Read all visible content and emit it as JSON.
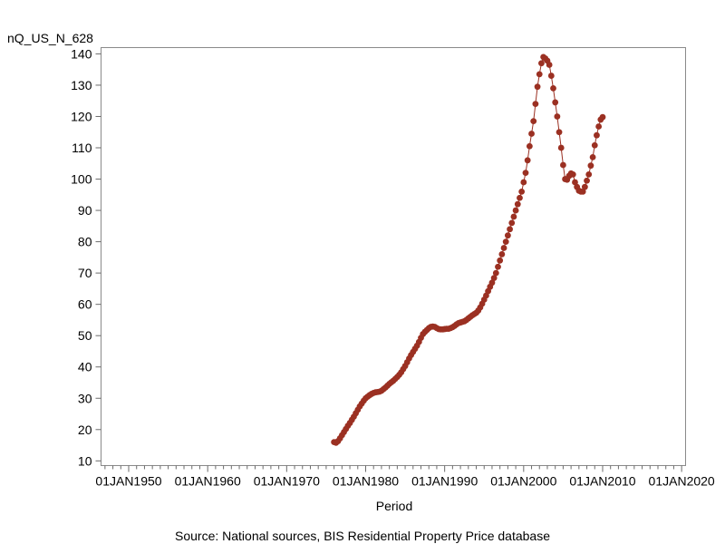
{
  "chart_data": {
    "type": "line",
    "ylabel": "nQ_US_N_628",
    "xlabel": "Period",
    "footnote": "Source: National sources, BIS Residential Property Price database",
    "x_ticks": [
      "01JAN1950",
      "01JAN1960",
      "01JAN1970",
      "01JAN1980",
      "01JAN1990",
      "01JAN2000",
      "01JAN2010",
      "01JAN2020"
    ],
    "y_ticks": [
      10,
      20,
      30,
      40,
      50,
      60,
      70,
      80,
      90,
      100,
      110,
      120,
      130,
      140
    ],
    "xlim": [
      1946.5,
      2020.5
    ],
    "ylim": [
      8.5,
      142
    ],
    "grid": false,
    "colors": {
      "series": "#9b3022"
    },
    "series": [
      {
        "points": [
          [
            1976.0,
            16.0
          ],
          [
            1976.25,
            15.8
          ],
          [
            1976.5,
            16.3
          ],
          [
            1976.75,
            17.2
          ],
          [
            1977.0,
            18.2
          ],
          [
            1977.25,
            19.2
          ],
          [
            1977.5,
            20.2
          ],
          [
            1977.75,
            21.2
          ],
          [
            1978.0,
            22.1
          ],
          [
            1978.25,
            23.1
          ],
          [
            1978.5,
            24.1
          ],
          [
            1978.75,
            25.2
          ],
          [
            1979.0,
            26.3
          ],
          [
            1979.25,
            27.4
          ],
          [
            1979.5,
            28.3
          ],
          [
            1979.75,
            29.2
          ],
          [
            1980.0,
            30.0
          ],
          [
            1980.25,
            30.5
          ],
          [
            1980.5,
            31.0
          ],
          [
            1980.75,
            31.4
          ],
          [
            1981.0,
            31.7
          ],
          [
            1981.25,
            31.9
          ],
          [
            1981.5,
            32.0
          ],
          [
            1981.75,
            32.1
          ],
          [
            1982.0,
            32.4
          ],
          [
            1982.25,
            32.9
          ],
          [
            1982.5,
            33.4
          ],
          [
            1982.75,
            34.0
          ],
          [
            1983.0,
            34.6
          ],
          [
            1983.25,
            35.1
          ],
          [
            1983.5,
            35.6
          ],
          [
            1983.75,
            36.2
          ],
          [
            1984.0,
            36.8
          ],
          [
            1984.25,
            37.5
          ],
          [
            1984.5,
            38.3
          ],
          [
            1984.75,
            39.3
          ],
          [
            1985.0,
            40.3
          ],
          [
            1985.25,
            41.5
          ],
          [
            1985.5,
            42.7
          ],
          [
            1985.75,
            43.8
          ],
          [
            1986.0,
            44.8
          ],
          [
            1986.25,
            45.8
          ],
          [
            1986.5,
            46.8
          ],
          [
            1986.75,
            48.0
          ],
          [
            1987.0,
            49.3
          ],
          [
            1987.25,
            50.5
          ],
          [
            1987.5,
            51.2
          ],
          [
            1987.75,
            51.8
          ],
          [
            1988.0,
            52.4
          ],
          [
            1988.25,
            52.8
          ],
          [
            1988.5,
            52.9
          ],
          [
            1988.75,
            52.8
          ],
          [
            1989.0,
            52.4
          ],
          [
            1989.25,
            52.1
          ],
          [
            1989.5,
            52.0
          ],
          [
            1989.75,
            52.0
          ],
          [
            1990.0,
            52.1
          ],
          [
            1990.25,
            52.2
          ],
          [
            1990.5,
            52.2
          ],
          [
            1990.75,
            52.4
          ],
          [
            1991.0,
            52.7
          ],
          [
            1991.25,
            53.1
          ],
          [
            1991.5,
            53.6
          ],
          [
            1991.75,
            54.0
          ],
          [
            1992.0,
            54.2
          ],
          [
            1992.25,
            54.4
          ],
          [
            1992.5,
            54.6
          ],
          [
            1992.75,
            55.0
          ],
          [
            1993.0,
            55.5
          ],
          [
            1993.25,
            56.0
          ],
          [
            1993.5,
            56.5
          ],
          [
            1993.75,
            56.9
          ],
          [
            1994.0,
            57.3
          ],
          [
            1994.25,
            58.0
          ],
          [
            1994.5,
            59.0
          ],
          [
            1994.75,
            60.2
          ],
          [
            1995.0,
            61.5
          ],
          [
            1995.25,
            62.8
          ],
          [
            1995.5,
            64.2
          ],
          [
            1995.75,
            65.6
          ],
          [
            1996.0,
            66.9
          ],
          [
            1996.25,
            68.4
          ],
          [
            1996.5,
            70.0
          ],
          [
            1996.75,
            72.0
          ],
          [
            1997.0,
            74.0
          ],
          [
            1997.25,
            76.0
          ],
          [
            1997.5,
            78.0
          ],
          [
            1997.75,
            80.0
          ],
          [
            1998.0,
            82.0
          ],
          [
            1998.25,
            84.0
          ],
          [
            1998.5,
            86.0
          ],
          [
            1998.75,
            88.0
          ],
          [
            1999.0,
            90.0
          ],
          [
            1999.25,
            92.0
          ],
          [
            1999.5,
            94.0
          ],
          [
            1999.75,
            96.0
          ],
          [
            2000.0,
            99.0
          ],
          [
            2000.25,
            102.0
          ],
          [
            2000.5,
            106.0
          ],
          [
            2000.75,
            110.5
          ],
          [
            2001.0,
            114.5
          ],
          [
            2001.25,
            118.5
          ],
          [
            2001.5,
            124.0
          ],
          [
            2001.75,
            129.5
          ],
          [
            2002.0,
            133.5
          ],
          [
            2002.25,
            137.0
          ],
          [
            2002.5,
            139.0
          ],
          [
            2002.75,
            138.5
          ],
          [
            2003.0,
            137.8
          ],
          [
            2003.25,
            136.5
          ],
          [
            2003.5,
            133.0
          ],
          [
            2003.75,
            129.0
          ],
          [
            2004.0,
            124.5
          ],
          [
            2004.25,
            120.0
          ],
          [
            2004.5,
            115.0
          ],
          [
            2004.75,
            110.0
          ],
          [
            2005.0,
            104.5
          ],
          [
            2005.25,
            100.0
          ],
          [
            2005.5,
            99.8
          ],
          [
            2005.75,
            101.0
          ],
          [
            2006.0,
            101.8
          ],
          [
            2006.25,
            101.5
          ],
          [
            2006.5,
            99.0
          ],
          [
            2006.75,
            97.5
          ],
          [
            2007.0,
            96.3
          ],
          [
            2007.25,
            96.0
          ],
          [
            2007.5,
            96.0
          ],
          [
            2007.75,
            97.5
          ],
          [
            2008.0,
            99.5
          ],
          [
            2008.25,
            101.5
          ],
          [
            2008.5,
            104.3
          ],
          [
            2008.75,
            107.0
          ],
          [
            2009.0,
            110.8
          ],
          [
            2009.25,
            114.0
          ],
          [
            2009.5,
            116.8
          ],
          [
            2009.75,
            119.0
          ],
          [
            2010.0,
            119.8
          ]
        ]
      }
    ]
  }
}
